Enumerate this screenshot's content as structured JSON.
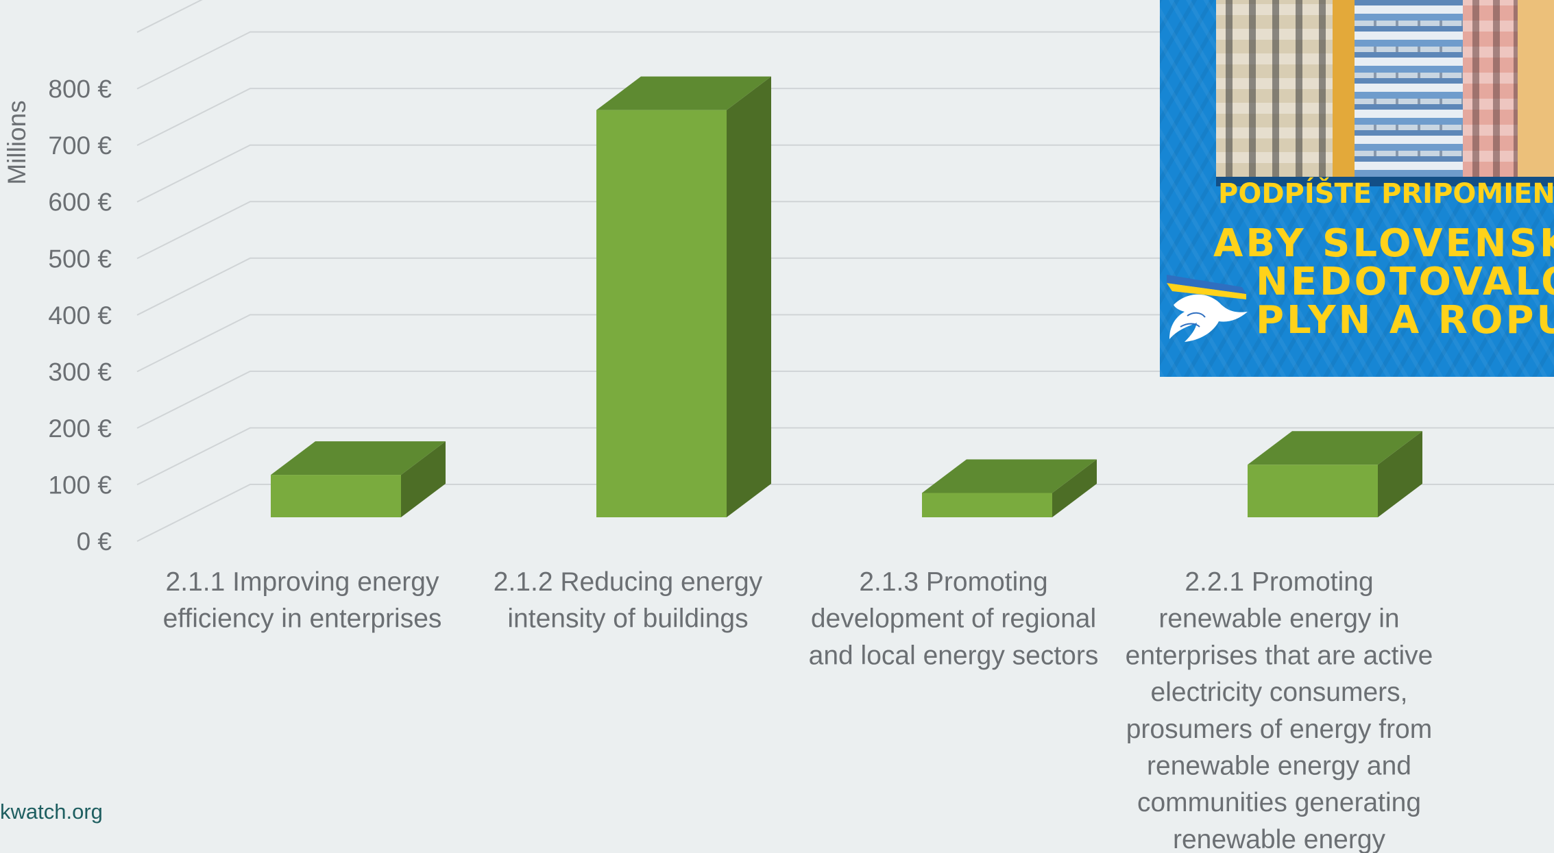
{
  "chart_data": {
    "type": "bar",
    "style": "3d-column",
    "categories": [
      "2.1.1 Improving energy efficiency in enterprises",
      "2.1.2 Reducing energy intensity of buildings",
      "2.1.3 Promoting development of regional and local energy sectors",
      "2.2.1 Promoting renewable energy in enterprises that are active electricity consumers, prosumers of energy from renewable energy and communities generating renewable energy"
    ],
    "category_lines": [
      [
        "2.1.1 Improving energy",
        "efficiency in enterprises"
      ],
      [
        "2.1.2 Reducing energy",
        "intensity of buildings"
      ],
      [
        "2.1.3 Promoting",
        "development of regional",
        "and local energy sectors"
      ],
      [
        "2.2.1 Promoting",
        "renewable energy in",
        "enterprises that are active",
        "electricity consumers,",
        "prosumers of energy from",
        "renewable energy and",
        "communities generating",
        "renewable energy"
      ]
    ],
    "values": [
      75,
      720,
      43,
      93
    ],
    "ylabel": "Millions",
    "ylim": [
      0,
      900
    ],
    "yticks": [
      0,
      100,
      200,
      300,
      400,
      500,
      600,
      700,
      800
    ],
    "ytick_labels": [
      "0 €",
      "100 €",
      "200 €",
      "300 €",
      "400 €",
      "500 €",
      "600 €",
      "700 €",
      "800 €"
    ],
    "grid": true,
    "legend": "none",
    "colors": {
      "front": "#7aab3e",
      "top": "#5e8a31",
      "side": "#4d6e26",
      "grid": "#d0d4d6",
      "text": "#6b6f73"
    }
  },
  "source": "kwatch.org",
  "banner": {
    "line1": "PODPÍŠTE PRIPOMIEN",
    "line2": "ABY SLOVENSK",
    "line3": "NEDOTOVALO",
    "line4": "PLYN A ROPU",
    "text_color": "#ffd21a",
    "background": "#1786d4"
  }
}
